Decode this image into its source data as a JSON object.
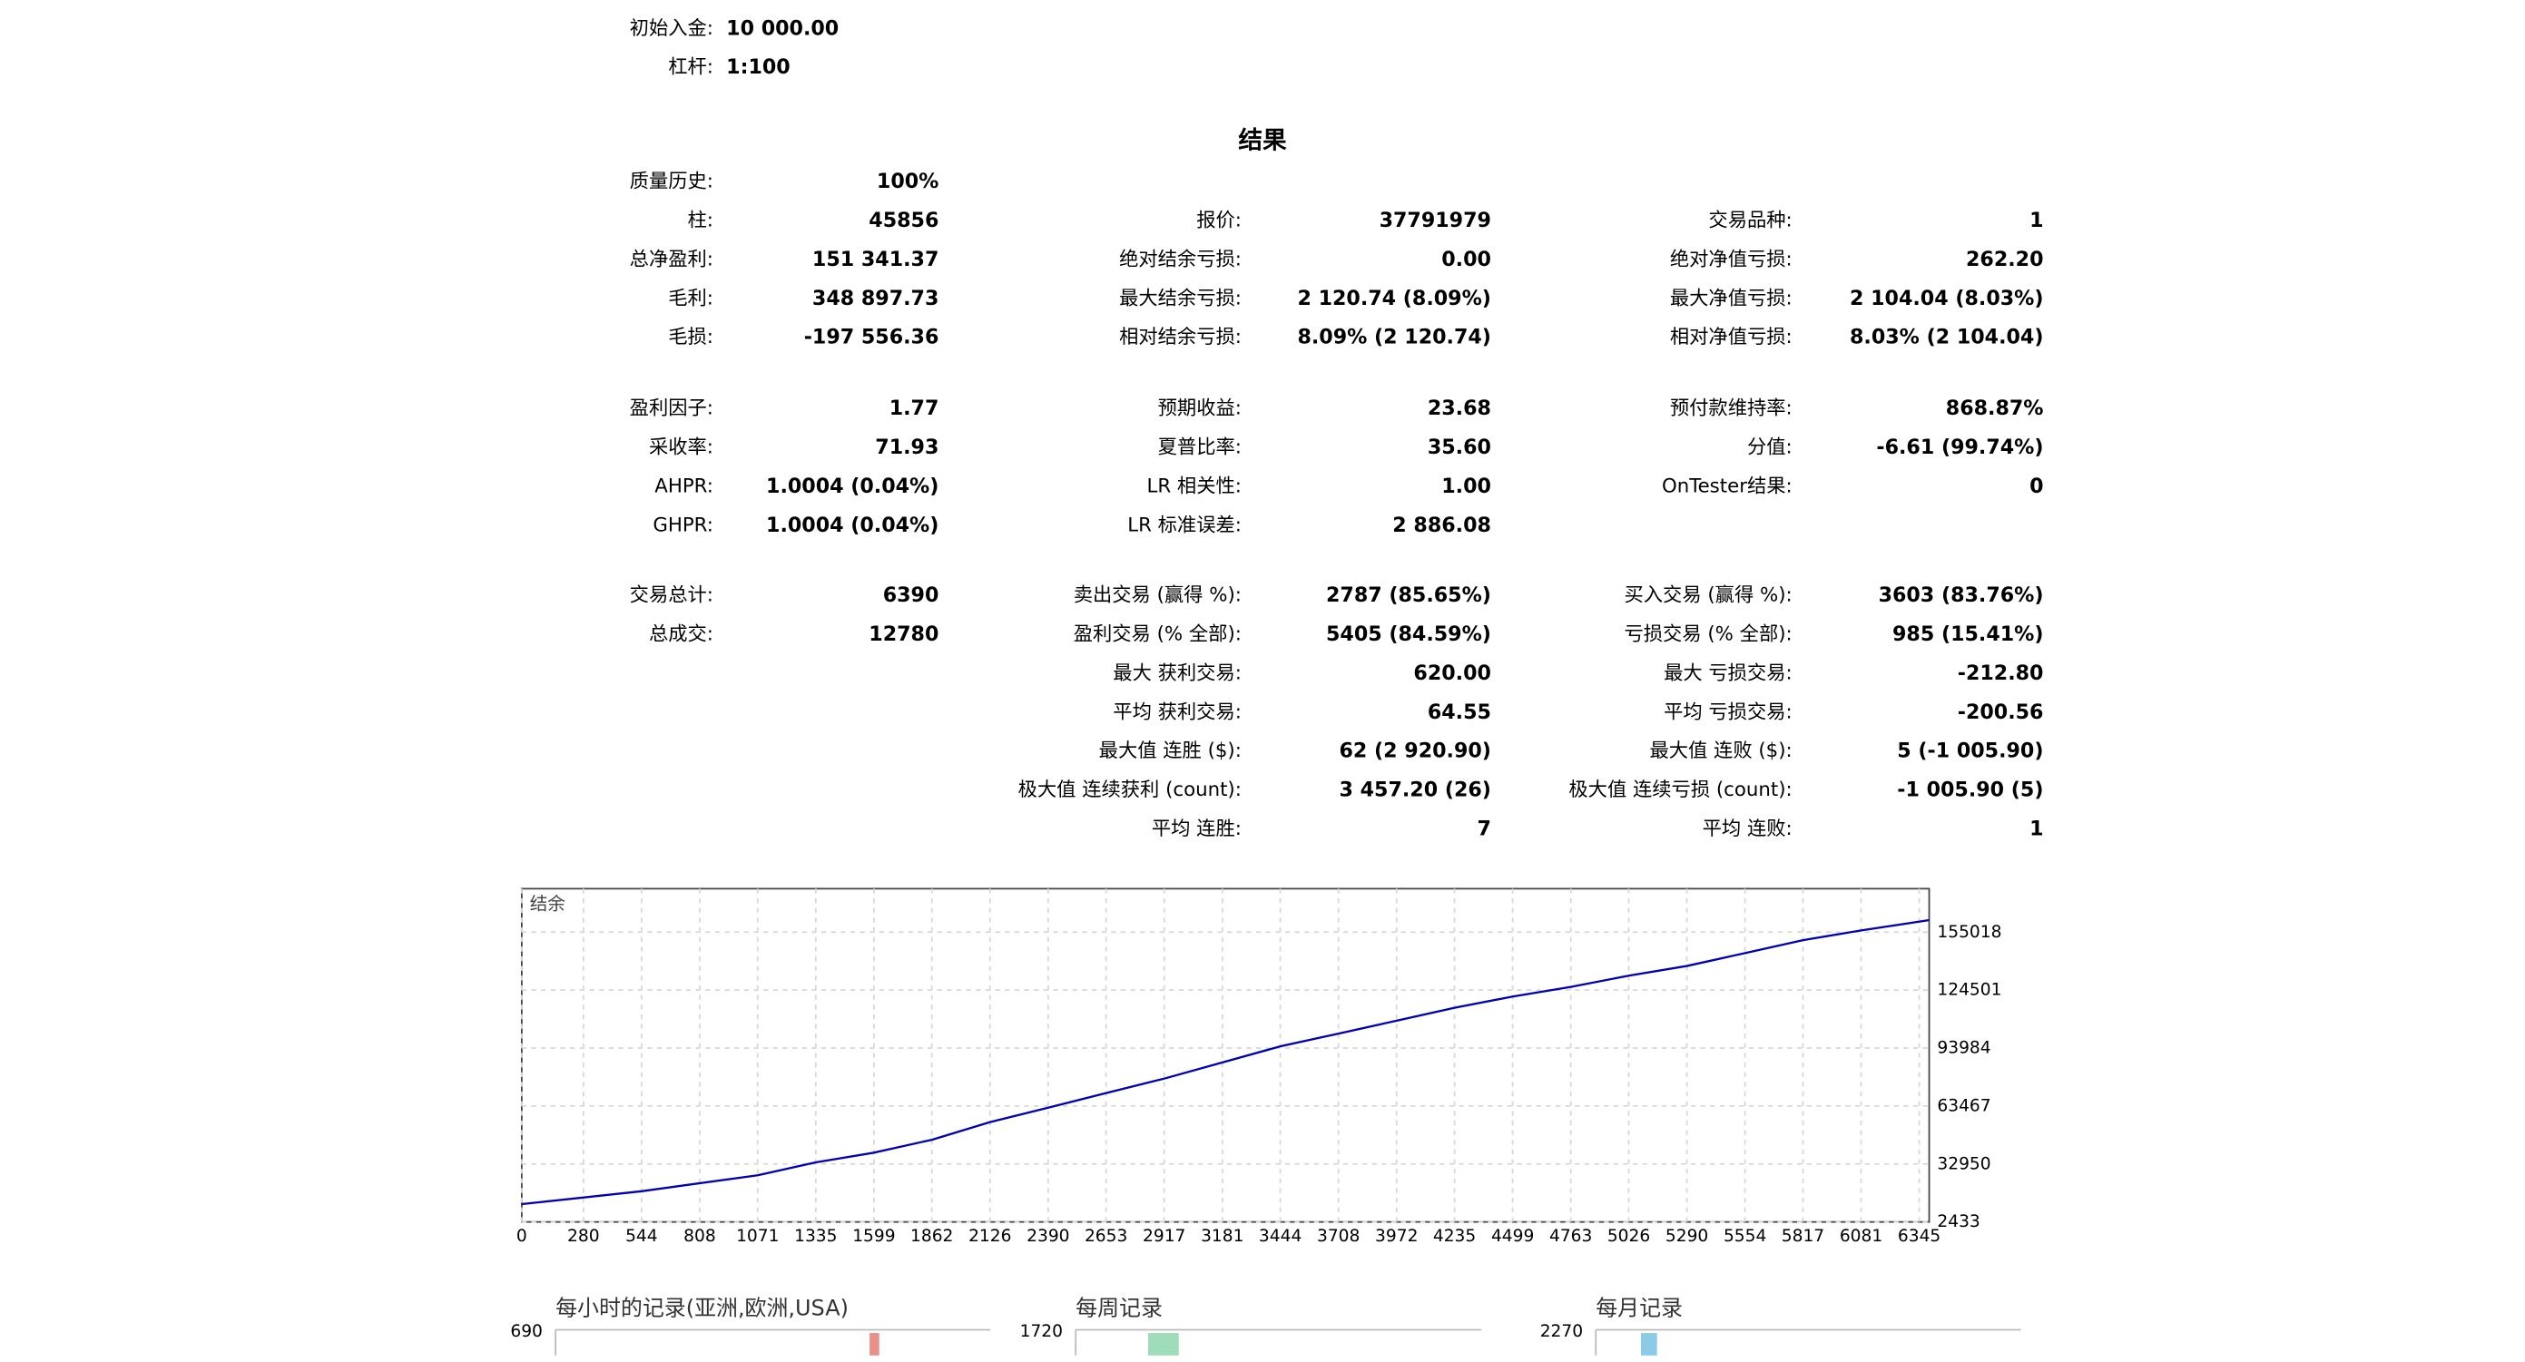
{
  "header": [
    {
      "label": "初始入金:",
      "value": "10 000.00"
    },
    {
      "label": "杠杆:",
      "value": "1:100"
    }
  ],
  "results": {
    "title": "结果",
    "sections": [
      [
        [
          {
            "label": "质量历史:",
            "value": "100%"
          },
          null,
          null
        ],
        [
          {
            "label": "柱:",
            "value": "45856"
          },
          {
            "label": "报价:",
            "value": "37791979"
          },
          {
            "label": "交易品种:",
            "value": "1"
          }
        ],
        [
          {
            "label": "总净盈利:",
            "value": "151 341.37"
          },
          {
            "label": "绝对结余亏损:",
            "value": "0.00"
          },
          {
            "label": "绝对净值亏损:",
            "value": "262.20"
          }
        ],
        [
          {
            "label": "毛利:",
            "value": "348 897.73"
          },
          {
            "label": "最大结余亏损:",
            "value": "2 120.74 (8.09%)"
          },
          {
            "label": "最大净值亏损:",
            "value": "2 104.04 (8.03%)"
          }
        ],
        [
          {
            "label": "毛损:",
            "value": "-197 556.36"
          },
          {
            "label": "相对结余亏损:",
            "value": "8.09% (2 120.74)"
          },
          {
            "label": "相对净值亏损:",
            "value": "8.03% (2 104.04)"
          }
        ]
      ],
      [
        [
          {
            "label": "盈利因子:",
            "value": "1.77"
          },
          {
            "label": "预期收益:",
            "value": "23.68"
          },
          {
            "label": "预付款维持率:",
            "value": "868.87%"
          }
        ],
        [
          {
            "label": "采收率:",
            "value": "71.93"
          },
          {
            "label": "夏普比率:",
            "value": "35.60"
          },
          {
            "label": "分值:",
            "value": "-6.61 (99.74%)"
          }
        ],
        [
          {
            "label": "AHPR:",
            "value": "1.0004 (0.04%)"
          },
          {
            "label": "LR 相关性:",
            "value": "1.00"
          },
          {
            "label": "OnTester结果:",
            "value": "0"
          }
        ],
        [
          {
            "label": "GHPR:",
            "value": "1.0004 (0.04%)"
          },
          {
            "label": "LR 标准误差:",
            "value": "2 886.08"
          },
          null
        ]
      ],
      [
        [
          {
            "label": "交易总计:",
            "value": "6390"
          },
          {
            "label": "卖出交易 (赢得 %):",
            "value": "2787 (85.65%)"
          },
          {
            "label": "买入交易 (赢得 %):",
            "value": "3603 (83.76%)"
          }
        ],
        [
          {
            "label": "总成交:",
            "value": "12780"
          },
          {
            "label": "盈利交易 (% 全部):",
            "value": "5405 (84.59%)"
          },
          {
            "label": "亏损交易 (% 全部):",
            "value": "985 (15.41%)"
          }
        ],
        [
          null,
          {
            "label": "最大 获利交易:",
            "value": "620.00"
          },
          {
            "label": "最大 亏损交易:",
            "value": "-212.80"
          }
        ],
        [
          null,
          {
            "label": "平均 获利交易:",
            "value": "64.55"
          },
          {
            "label": "平均 亏损交易:",
            "value": "-200.56"
          }
        ],
        [
          null,
          {
            "label": "最大值 连胜 ($):",
            "value": "62 (2 920.90)"
          },
          {
            "label": "最大值 连败 ($):",
            "value": "5 (-1 005.90)"
          }
        ],
        [
          null,
          {
            "label": "极大值 连续获利 (count):",
            "value": "3 457.20 (26)"
          },
          {
            "label": "极大值 连续亏损 (count):",
            "value": "-1 005.90 (5)"
          }
        ],
        [
          null,
          {
            "label": "平均 连胜:",
            "value": "7"
          },
          {
            "label": "平均 连败:",
            "value": "1"
          }
        ]
      ]
    ]
  },
  "chart_data": {
    "type": "line",
    "title": "结余",
    "x": [
      0,
      544,
      1071,
      1335,
      1599,
      1862,
      2126,
      2390,
      2653,
      2917,
      3181,
      3444,
      3708,
      3972,
      4235,
      4499,
      4763,
      5026,
      5290,
      5554,
      5817,
      6081,
      6390
    ],
    "series": [
      {
        "name": "结余",
        "color": "#0000b4",
        "values": [
          11800,
          18600,
          27000,
          33800,
          38900,
          45700,
          55000,
          62600,
          70300,
          77900,
          86400,
          94900,
          101600,
          108400,
          115200,
          121100,
          126200,
          132100,
          137200,
          144000,
          150800,
          155900,
          161341
        ]
      }
    ],
    "xlim": [
      0,
      6390
    ],
    "ylim": [
      2433,
      177900
    ],
    "xticks": [
      0,
      280,
      544,
      808,
      1071,
      1335,
      1599,
      1862,
      2126,
      2390,
      2653,
      2917,
      3181,
      3444,
      3708,
      3972,
      4235,
      4499,
      4763,
      5026,
      5290,
      5554,
      5817,
      6081,
      6345
    ],
    "yticks": [
      2433,
      32950,
      63467,
      93984,
      124501,
      155018
    ],
    "grid": true
  },
  "histograms": [
    {
      "title": "每小时的记录(亚洲,欧洲,USA)",
      "ytop": 690
    },
    {
      "title": "每周记录",
      "ytop": 1720
    },
    {
      "title": "每月记录",
      "ytop": 2270
    }
  ]
}
